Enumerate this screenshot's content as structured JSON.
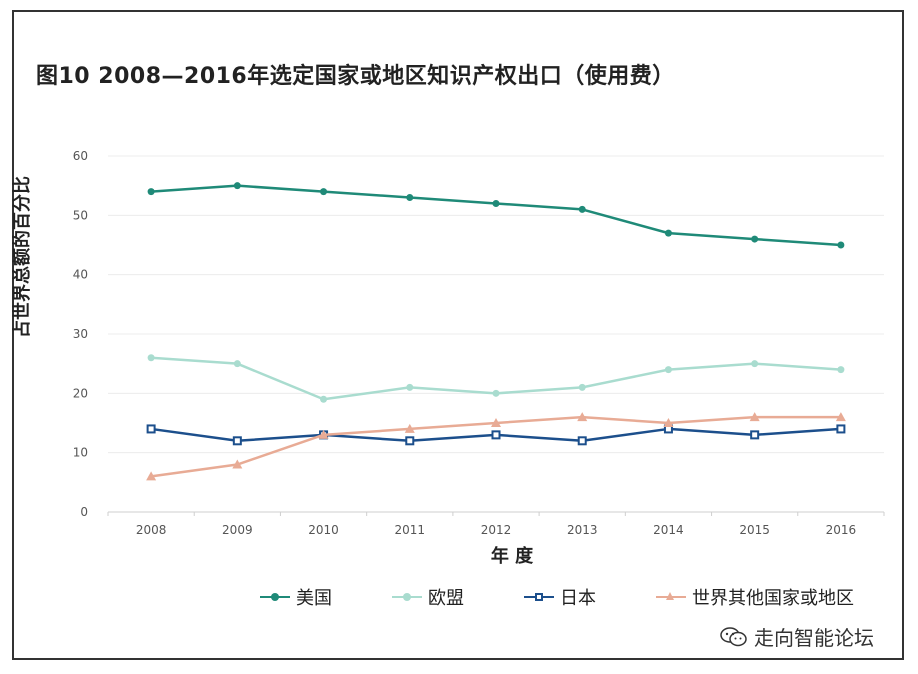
{
  "title": "图10   2008—2016年选定国家或地区知识产权出口（使用费）",
  "watermark": "走向智能论坛",
  "chart_data": {
    "type": "line",
    "title": "图10   2008—2016年选定国家或地区知识产权出口（使用费）",
    "xlabel": "年 度",
    "ylabel": "占世界总额的百分比",
    "x": [
      "2008",
      "2009",
      "2010",
      "2011",
      "2012",
      "2013",
      "2014",
      "2015",
      "2016"
    ],
    "yticks": [
      "0",
      "10",
      "20",
      "30",
      "40",
      "50",
      "60"
    ],
    "ylim": [
      0,
      60
    ],
    "grid": true,
    "legend_position": "bottom",
    "series": [
      {
        "name": "美国",
        "color": "#1f8a78",
        "marker": "circle",
        "values": [
          54,
          55,
          54,
          53,
          52,
          51,
          47,
          46,
          45
        ]
      },
      {
        "name": "欧盟",
        "color": "#a9dccf",
        "marker": "circle",
        "values": [
          26,
          25,
          19,
          21,
          20,
          21,
          24,
          25,
          24
        ]
      },
      {
        "name": "日本",
        "color": "#1c4f8c",
        "marker": "square",
        "values": [
          14,
          12,
          13,
          12,
          13,
          12,
          14,
          13,
          14
        ]
      },
      {
        "name": "世界其他国家或地区",
        "color": "#e8ab95",
        "marker": "triangle",
        "values": [
          6,
          8,
          13,
          14,
          15,
          16,
          15,
          16,
          16
        ]
      }
    ]
  }
}
